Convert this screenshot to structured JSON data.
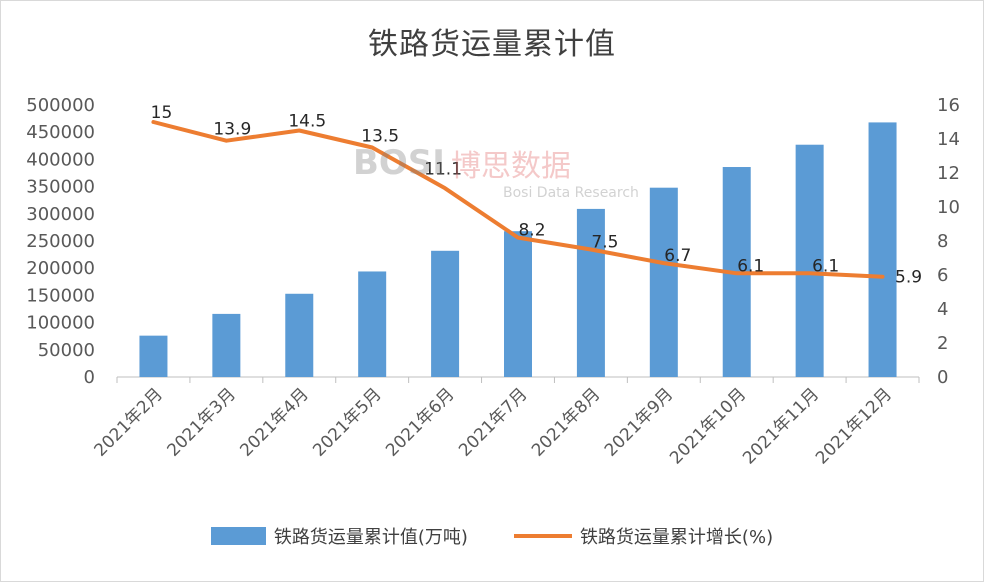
{
  "chart_data": {
    "type": "bar+line",
    "title": "铁路货运量累计值",
    "categories": [
      "2021年2月",
      "2021年3月",
      "2021年4月",
      "2021年5月",
      "2021年6月",
      "2021年7月",
      "2021年8月",
      "2021年9月",
      "2021年10月",
      "2021年11月",
      "2021年12月"
    ],
    "series": [
      {
        "name": "铁路货运量累计值(万吨)",
        "type": "bar",
        "axis": "left",
        "color": "#5b9bd5",
        "values": [
          76000,
          116000,
          153000,
          194000,
          232000,
          268000,
          309000,
          348000,
          386000,
          427000,
          468000
        ]
      },
      {
        "name": "铁路货运量累计增长(%)",
        "type": "line",
        "axis": "right",
        "color": "#ed7d31",
        "values": [
          15,
          13.9,
          14.5,
          13.5,
          11.1,
          8.2,
          7.5,
          6.7,
          6.1,
          6.1,
          5.9
        ],
        "labels": [
          "15",
          "13.9",
          "14.5",
          "13.5",
          "11.1",
          "8.2",
          "7.5",
          "6.7",
          "6.1",
          "6.1",
          "5.9"
        ]
      }
    ],
    "y_left": {
      "min": 0,
      "max": 500000,
      "step": 50000
    },
    "y_right": {
      "min": 0,
      "max": 16,
      "step": 2
    },
    "grid": false,
    "legend": "bottom"
  },
  "watermark": {
    "logo": "BOSI",
    "cn": "博思数据",
    "en": "Bosi Data Research"
  }
}
